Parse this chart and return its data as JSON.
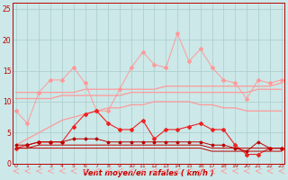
{
  "x": [
    0,
    1,
    2,
    3,
    4,
    5,
    6,
    7,
    8,
    9,
    10,
    11,
    12,
    13,
    14,
    15,
    16,
    17,
    18,
    19,
    20,
    21,
    22,
    23
  ],
  "line_light_pink_zigzag": [
    8.5,
    6.5,
    11.5,
    13.5,
    13.5,
    15.5,
    13.0,
    8.5,
    8.5,
    12.0,
    15.5,
    18.0,
    16.0,
    15.5,
    21.0,
    16.5,
    18.5,
    15.5,
    13.5,
    13.0,
    10.5,
    13.5,
    13.0,
    13.5
  ],
  "line_pink_flat1": [
    11.5,
    11.5,
    11.5,
    11.5,
    11.5,
    11.5,
    12.0,
    12.0,
    12.0,
    12.0,
    12.0,
    12.0,
    12.0,
    12.5,
    12.5,
    12.5,
    12.5,
    12.5,
    12.5,
    12.5,
    12.5,
    12.5,
    12.5,
    13.0
  ],
  "line_pink_flat2": [
    10.5,
    10.5,
    10.5,
    10.5,
    11.0,
    11.0,
    11.0,
    11.0,
    11.0,
    11.0,
    11.5,
    11.5,
    11.5,
    11.5,
    11.5,
    11.5,
    11.5,
    11.5,
    11.5,
    11.5,
    11.5,
    12.0,
    12.0,
    12.0
  ],
  "line_pink_curve": [
    3.0,
    4.0,
    5.0,
    6.0,
    7.0,
    7.5,
    8.0,
    8.5,
    9.0,
    9.0,
    9.5,
    9.5,
    10.0,
    10.0,
    10.0,
    10.0,
    9.5,
    9.5,
    9.0,
    9.0,
    8.5,
    8.5,
    8.5,
    8.5
  ],
  "line_red_zigzag": [
    2.5,
    3.0,
    3.5,
    3.5,
    3.5,
    6.0,
    8.0,
    8.5,
    6.5,
    5.5,
    5.5,
    7.0,
    4.0,
    5.5,
    5.5,
    6.0,
    6.5,
    5.5,
    5.5,
    3.0,
    1.5,
    1.5,
    2.5,
    2.5
  ],
  "line_dark_red_zigzag2": [
    3.0,
    3.0,
    3.5,
    3.5,
    3.5,
    4.0,
    4.0,
    4.0,
    3.5,
    3.5,
    3.5,
    3.5,
    3.5,
    3.5,
    3.5,
    3.5,
    3.5,
    3.0,
    3.0,
    2.5,
    2.0,
    3.5,
    2.5,
    2.5
  ],
  "line_dark_red1": [
    2.5,
    2.5,
    3.0,
    3.0,
    3.0,
    3.0,
    3.0,
    3.0,
    3.0,
    3.0,
    3.0,
    3.0,
    3.0,
    3.0,
    3.0,
    3.0,
    3.0,
    2.5,
    2.5,
    2.5,
    2.5,
    2.5,
    2.5,
    2.5
  ],
  "line_dark_red2": [
    2.5,
    2.5,
    2.5,
    2.5,
    2.5,
    2.5,
    2.5,
    2.5,
    2.5,
    2.5,
    2.5,
    2.5,
    2.5,
    2.5,
    2.5,
    2.5,
    2.5,
    2.0,
    2.0,
    2.0,
    2.0,
    2.0,
    2.0,
    2.0
  ],
  "bg_color": "#cce8e8",
  "grid_color": "#aacccc",
  "light_pink": "#ff9999",
  "red": "#ee2222",
  "dark_red": "#bb0000",
  "medium_red": "#dd3333",
  "xlabel": "Vent moyen/en rafales ( km/h )",
  "xlabel_color": "#cc0000",
  "ylim": [
    0,
    26
  ],
  "yticks": [
    0,
    5,
    10,
    15,
    20,
    25
  ],
  "xlim": [
    -0.3,
    23.3
  ]
}
